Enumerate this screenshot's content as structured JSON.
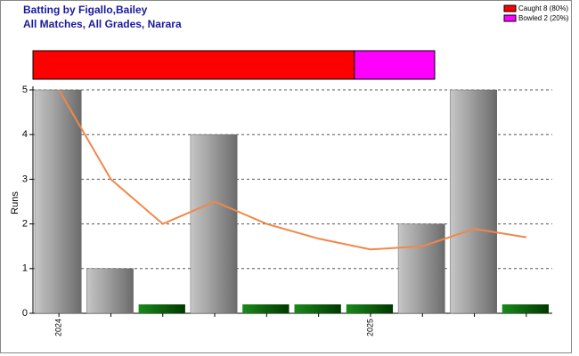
{
  "header": {
    "title": "Batting by Figallo,Bailey",
    "subtitle": "All Matches, All Grades, Narara"
  },
  "dismissals": {
    "items": [
      {
        "label": "Caught 8 (80%)",
        "value": 80,
        "color": "#ff0000"
      },
      {
        "label": "Bowled 2 (20%)",
        "value": 20,
        "color": "#ff00ff"
      }
    ]
  },
  "chart_data": {
    "type": "bar",
    "y_label": "Runs",
    "categories": [
      "2024",
      null,
      null,
      null,
      null,
      null,
      "2025",
      null,
      null,
      null
    ],
    "series": [
      {
        "values": [
          5,
          1,
          0,
          4,
          0,
          0,
          0,
          2,
          5,
          0
        ],
        "color": "#a0a0a0"
      },
      {
        "type": "line",
        "values": [
          5,
          3,
          2,
          2.5,
          2,
          1.67,
          1.43,
          1.5,
          1.89,
          1.7
        ],
        "color": "#f08848"
      }
    ],
    "ylim": [
      0,
      5
    ],
    "yticks": [
      0,
      1,
      2,
      3,
      4,
      5
    ],
    "grid": true,
    "zero_color": "#006400"
  }
}
